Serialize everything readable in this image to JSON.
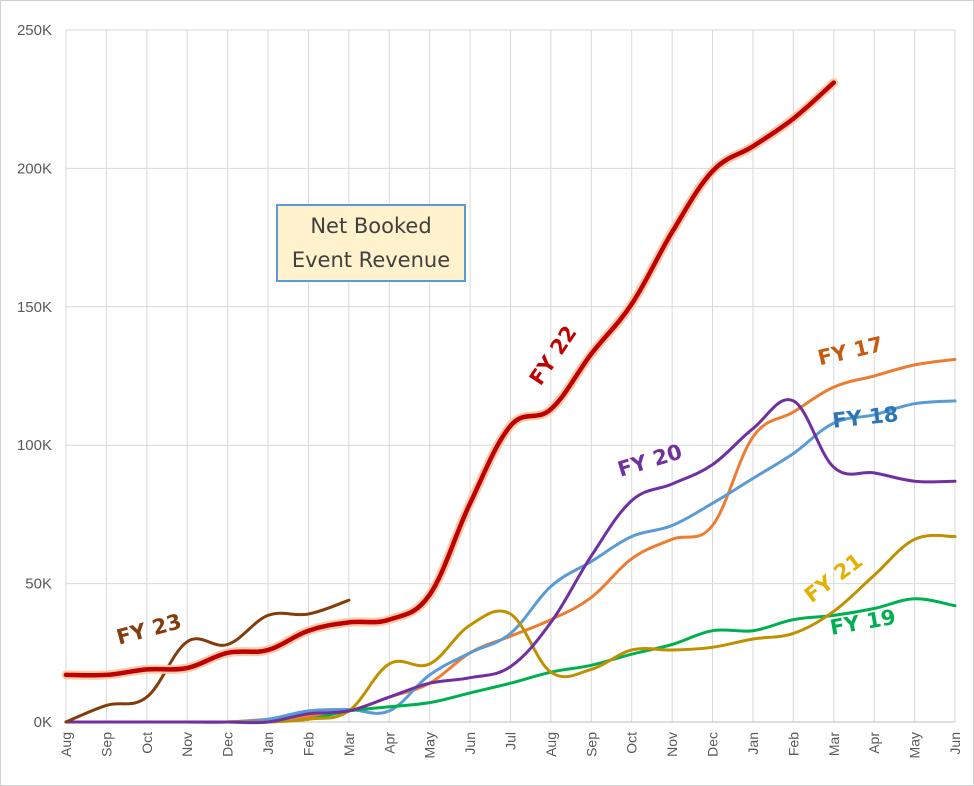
{
  "chart_data": {
    "type": "line",
    "title": [
      "Net Booked",
      "Event Revenue"
    ],
    "xlabel": "",
    "ylabel": "",
    "ylim": [
      0,
      250000
    ],
    "y_ticks": [
      0,
      50000,
      100000,
      150000,
      200000,
      250000
    ],
    "y_tick_labels": [
      "0K",
      "50K",
      "100K",
      "150K",
      "200K",
      "250K"
    ],
    "categories": [
      "Aug",
      "Sep",
      "Oct",
      "Nov",
      "Dec",
      "Jan",
      "Feb",
      "Mar",
      "Apr",
      "May",
      "Jun",
      "Jul",
      "Aug",
      "Sep",
      "Oct",
      "Nov",
      "Dec",
      "Jan",
      "Feb",
      "Mar",
      "Apr",
      "May",
      "Jun"
    ],
    "grid": true,
    "series": [
      {
        "name": "FY 17",
        "color": "#ed7d31",
        "values": [
          0,
          0,
          0,
          0,
          0,
          1000,
          2000,
          4000,
          9000,
          14000,
          25000,
          31000,
          37000,
          45000,
          59000,
          66000,
          71000,
          103000,
          112000,
          121000,
          125000,
          129000,
          131000
        ]
      },
      {
        "name": "FY 18",
        "color": "#5b9bd5",
        "values": [
          0,
          0,
          0,
          0,
          0,
          1000,
          4000,
          4500,
          4000,
          17000,
          25000,
          32000,
          49000,
          58000,
          67000,
          71000,
          79000,
          88000,
          97000,
          108000,
          111000,
          115000,
          116000
        ]
      },
      {
        "name": "FY 19",
        "color": "#00b050",
        "values": [
          0,
          0,
          0,
          0,
          0,
          0,
          1000,
          4000,
          5500,
          7000,
          10500,
          14000,
          18000,
          20500,
          24500,
          28000,
          33000,
          33000,
          37000,
          38500,
          41000,
          44500,
          42000
        ]
      },
      {
        "name": "FY 20",
        "color": "#7030a0",
        "values": [
          0,
          0,
          0,
          0,
          0,
          0,
          3000,
          4000,
          9000,
          14000,
          16000,
          20000,
          36000,
          60000,
          80000,
          86000,
          93000,
          106000,
          116000,
          92000,
          90000,
          87000,
          87000
        ]
      },
      {
        "name": "FY 21",
        "color": "#bf9000",
        "values": [
          0,
          0,
          0,
          0,
          0,
          0,
          1000,
          4000,
          21000,
          21000,
          35000,
          39000,
          18000,
          19000,
          26000,
          26000,
          27000,
          30000,
          32000,
          40000,
          53000,
          66000,
          67000
        ]
      },
      {
        "name": "FY 22",
        "color": "#c00000",
        "values": [
          17000,
          17000,
          19000,
          19500,
          25000,
          26000,
          33000,
          36000,
          37000,
          46000,
          79000,
          107000,
          113000,
          133000,
          151000,
          177000,
          199000,
          208000,
          218000,
          231000,
          null,
          null,
          null
        ]
      },
      {
        "name": "FY 23",
        "color": "#843c0c",
        "values": [
          0,
          6000,
          9000,
          29000,
          28000,
          38500,
          39000,
          44000,
          null,
          null,
          null,
          null,
          null,
          null,
          null,
          null,
          null,
          null,
          null,
          null,
          null,
          null,
          null
        ]
      }
    ],
    "series_labels": [
      {
        "text": "FY 17",
        "color": "#c55a11",
        "x_cat": 19.45,
        "y_value": 131500,
        "rotate": -13
      },
      {
        "text": "FY 18",
        "color": "#2e75b6",
        "x_cat": 19.8,
        "y_value": 107500,
        "rotate": -6
      },
      {
        "text": "FY 19",
        "color": "#00b050",
        "x_cat": 19.75,
        "y_value": 33500,
        "rotate": -10
      },
      {
        "text": "FY 20",
        "color": "#7030a0",
        "x_cat": 14.5,
        "y_value": 92000,
        "rotate": -17
      },
      {
        "text": "FY 21",
        "color": "#e6b000",
        "x_cat": 19.1,
        "y_value": 50000,
        "rotate": -37
      },
      {
        "text": "FY 22",
        "color": "#c00000",
        "x_cat": 12.2,
        "y_value": 131000,
        "rotate": -56
      },
      {
        "text": "FY 23",
        "color": "#843c0c",
        "x_cat": 2.1,
        "y_value": 31000,
        "rotate": -15
      }
    ]
  }
}
